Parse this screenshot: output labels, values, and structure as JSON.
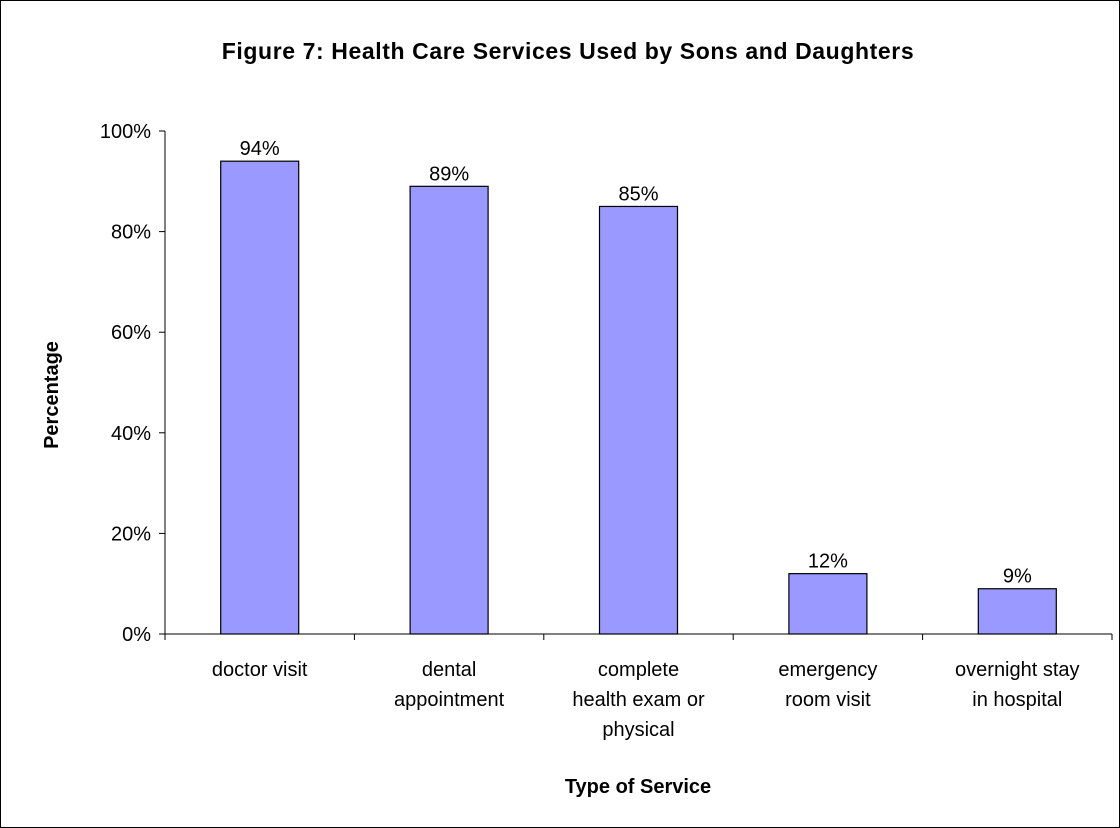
{
  "chart_data": {
    "type": "bar",
    "title": "Figure 7: Health Care Services Used by Sons and Daughters",
    "xlabel": "Type of Service",
    "ylabel": "Percentage",
    "categories": [
      [
        "doctor visit"
      ],
      [
        "dental",
        "appointment"
      ],
      [
        "complete",
        "health exam or",
        "physical"
      ],
      [
        "emergency",
        "room visit"
      ],
      [
        "overnight stay",
        "in hospital"
      ]
    ],
    "values": [
      94,
      89,
      85,
      12,
      9
    ],
    "data_labels": [
      "94%",
      "89%",
      "85%",
      "12%",
      "9%"
    ],
    "ylim": [
      0,
      100
    ],
    "yticks": [
      0,
      20,
      40,
      60,
      80,
      100
    ],
    "ytick_labels": [
      "0%",
      "20%",
      "40%",
      "60%",
      "80%",
      "100%"
    ],
    "grid": false,
    "legend": "none",
    "colors": {
      "bar_fill": "#9999ff",
      "bar_stroke": "#000000",
      "axis": "#000000",
      "frame": "#000000",
      "background": "#ffffff"
    }
  }
}
